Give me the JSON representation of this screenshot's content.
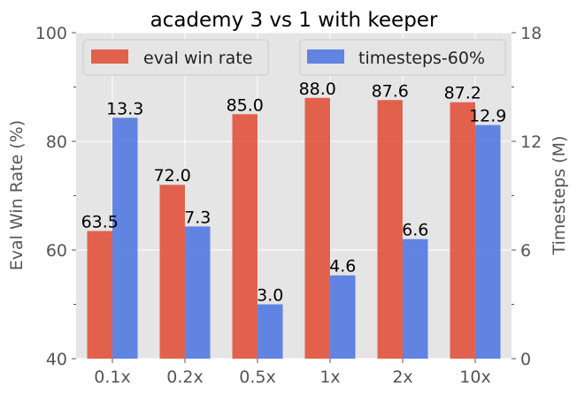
{
  "chart_data": {
    "type": "bar",
    "title": "academy 3 vs 1 with keeper",
    "categories": [
      "0.1x",
      "0.2x",
      "0.5x",
      "1x",
      "2x",
      "10x"
    ],
    "series": [
      {
        "name": "eval win rate",
        "axis": "left",
        "color": "#e24a33",
        "values": [
          63.5,
          72.0,
          85.0,
          88.0,
          87.6,
          87.2
        ],
        "labels": [
          "63.5",
          "72.0",
          "85.0",
          "88.0",
          "87.6",
          "87.2"
        ]
      },
      {
        "name": "timesteps-60%",
        "axis": "right",
        "color": "#4a72e0",
        "values": [
          13.3,
          7.3,
          3.0,
          4.6,
          6.6,
          12.9
        ],
        "labels": [
          "13.3",
          "7.3",
          "3.0",
          "4.6",
          "6.6",
          "12.9"
        ]
      }
    ],
    "ylabel": "Eval Win Rate (%)",
    "ylabel_right": "Timesteps (M)",
    "ylim": [
      40,
      100
    ],
    "ylim_right": [
      0,
      18
    ],
    "yticks": [
      40,
      60,
      80,
      100
    ],
    "yticks_right": [
      0,
      6,
      12,
      18
    ],
    "grid": true,
    "legend_placement": "top"
  }
}
